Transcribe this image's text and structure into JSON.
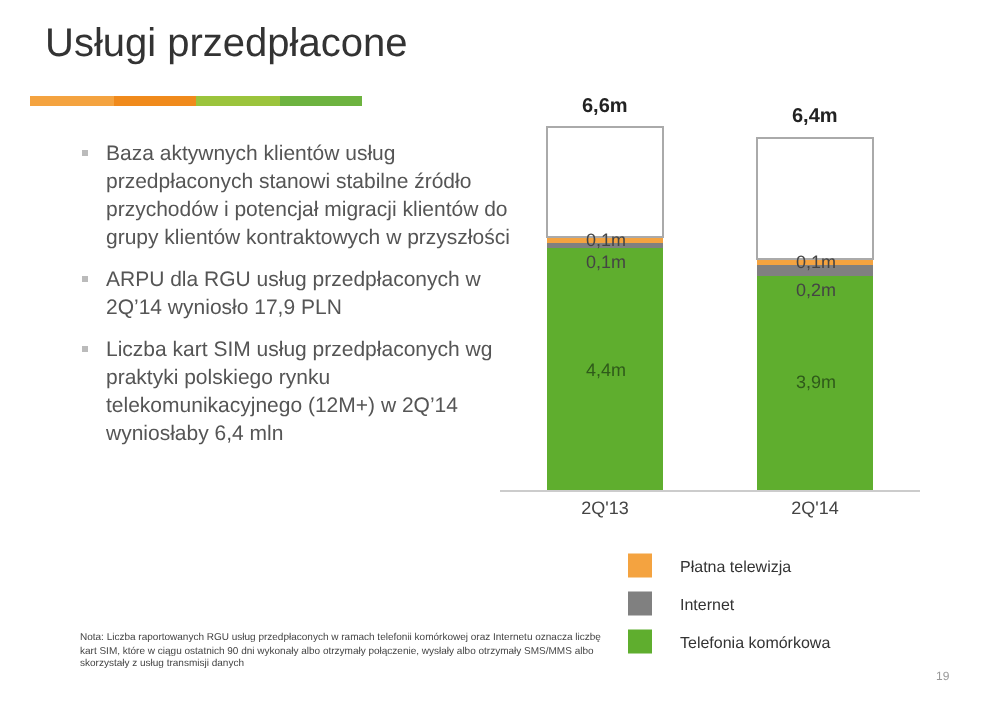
{
  "chart_data": {
    "type": "bar",
    "title": "Usługi przedpłacone",
    "categories": [
      "2Q'13",
      "2Q'14"
    ],
    "stacked": true,
    "series": [
      {
        "name": "Telefonia komórkowa",
        "color": "#5fae2e",
        "values": [
          4.4,
          3.9
        ],
        "value_labels": [
          "4,4m",
          "3,9m"
        ]
      },
      {
        "name": "Internet",
        "color": "#808080",
        "values": [
          0.1,
          0.2
        ],
        "value_labels": [
          "0,1m",
          "0,2m"
        ]
      },
      {
        "name": "Płatna telewizja",
        "color": "#f4a340",
        "values": [
          0.1,
          0.1
        ],
        "value_labels": [
          "0,1m",
          "0,1m"
        ]
      },
      {
        "color": "#ffffff",
        "values": [
          2.0,
          2.2
        ]
      }
    ],
    "totals": [
      "6,6m",
      "6,4m"
    ],
    "legend": "bottom",
    "grid": false,
    "tick_labels": "x",
    "annotations": [
      "Baza aktywnych klientów usług przedpłaconych stanowi stabilne źródło przychodów i potencjał migracji klientów do grupy klientów kontraktowych w przyszłości",
      "ARPU dla RGU usług przedpłaconych w 2Q’14 wyniosło 17,9 PLN",
      "Liczba kart SIM usług przedpłaconych wg praktyki polskiego rynku telekomunikacyjnego (12M+) w 2Q’14 wyniosłaby 6,4 mln",
      "Nota: Liczba raportowanych RGU usług przedpłaconych w ramach telefonii komórkowej oraz Internetu oznacza liczbę kart SIM, które w ciągu ostatnich 90 dni wykonały albo otrzymały połączenie, wysłały albo otrzymały SMS/MMS albo skorzystały z usług transmisji danych",
      "19"
    ]
  }
}
